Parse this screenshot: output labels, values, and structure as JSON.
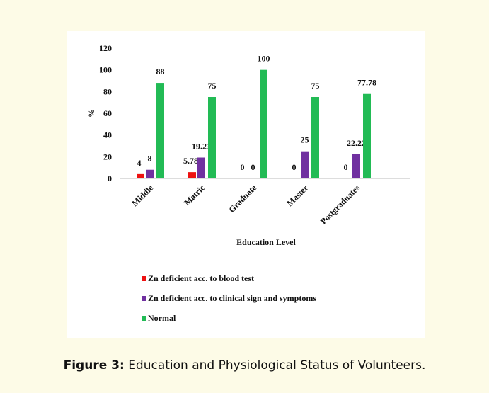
{
  "chart_data": {
    "type": "bar",
    "categories": [
      "Middle",
      "Matric",
      "Graduate",
      "Master",
      "Postgraduates"
    ],
    "series": [
      {
        "name": "Zn deficient acc. to blood test",
        "color": "#ee1111",
        "values": [
          4,
          5.78,
          0,
          0,
          0
        ]
      },
      {
        "name": "Zn deficient acc. to clinical sign and symptoms",
        "color": "#7030a0",
        "values": [
          8,
          19.23,
          0,
          25,
          22.22
        ]
      },
      {
        "name": "Normal",
        "color": "#22bb55",
        "values": [
          88,
          75,
          100,
          75,
          77.78
        ]
      }
    ],
    "ylim": [
      0,
      120
    ],
    "yticks": [
      0,
      20,
      40,
      60,
      80,
      100,
      120
    ],
    "y_label": "%",
    "x_label": "Education Level",
    "grid": false,
    "legend": "bottom"
  },
  "caption": {
    "label": "Figure 3:",
    "text": "Education and Physiological Status of Volunteers."
  }
}
